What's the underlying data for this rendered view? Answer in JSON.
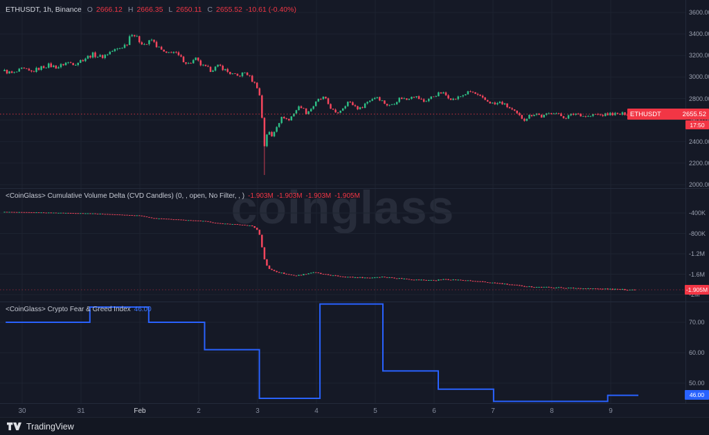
{
  "watermark": "coinglass",
  "colors": {
    "up": "#2ebd85",
    "down": "#f6465d",
    "accent_red": "#f23645",
    "accent_blue": "#2962ff",
    "grid": "#1d2330",
    "axis_text": "#9ba1b0"
  },
  "price_panel": {
    "legend": {
      "title": "ETHUSDT, 1h, Binance",
      "o_label": "O",
      "o": "2666.12",
      "h_label": "H",
      "h": "2666.35",
      "l_label": "L",
      "l": "2650.11",
      "c_label": "C",
      "c": "2655.52",
      "change": "-10.61 (-0.40%)"
    },
    "badge_symbol": "ETHUSDT",
    "badge_price": "2655.52",
    "countdown": "17:50"
  },
  "cvd_panel": {
    "legend_title": "<CoinGlass> Cumulative Volume Delta (CVD Candles) (0, , open, No Filter, , )",
    "values": [
      "-1.903M",
      "-1.903M",
      "-1.903M",
      "-1.905M"
    ],
    "badge": "-1.905M"
  },
  "fg_panel": {
    "legend_title": "<CoinGlass> Crypto Fear & Greed Index",
    "value": "46.00",
    "badge": "46.00"
  },
  "time_axis": {
    "labels": [
      {
        "label": "30",
        "t": 0
      },
      {
        "label": "31",
        "t": 1
      },
      {
        "label": "Feb",
        "t": 2,
        "major": true
      },
      {
        "label": "2",
        "t": 3
      },
      {
        "label": "3",
        "t": 4
      },
      {
        "label": "4",
        "t": 5
      },
      {
        "label": "5",
        "t": 6
      },
      {
        "label": "6",
        "t": 7
      },
      {
        "label": "7",
        "t": 8
      },
      {
        "label": "8",
        "t": 9
      },
      {
        "label": "9",
        "t": 10
      }
    ]
  },
  "footer": {
    "brand": "TradingView"
  },
  "chart_data": [
    {
      "type": "candlestick",
      "title": "ETHUSDT, 1h, Binance",
      "ohlc_last": {
        "open": 2666.12,
        "high": 2666.35,
        "low": 2650.11,
        "close": 2655.52,
        "change": -10.61,
        "change_pct": -0.4
      },
      "current_price": 2655.52,
      "countdown": "17:50",
      "ylim": [
        2000,
        3600
      ],
      "y_ticks": [
        {
          "label": "3600.00",
          "v": 3600
        },
        {
          "label": "3400.00",
          "v": 3400
        },
        {
          "label": "3200.00",
          "v": 3200
        },
        {
          "label": "3000.00",
          "v": 3000
        },
        {
          "label": "2800.00",
          "v": 2800
        },
        {
          "label": "2600.00",
          "v": 2600
        },
        {
          "label": "2400.00",
          "v": 2400
        },
        {
          "label": "2200.00",
          "v": 2200
        },
        {
          "label": "2000.00",
          "v": 2000
        }
      ],
      "crash_wick": {
        "t": 4.1,
        "low": 2090
      },
      "price_keypoints": [
        [
          -0.3,
          3055
        ],
        [
          -0.15,
          3030
        ],
        [
          0.0,
          3075
        ],
        [
          0.15,
          3045
        ],
        [
          0.3,
          3085
        ],
        [
          0.45,
          3110
        ],
        [
          0.6,
          3090
        ],
        [
          0.75,
          3135
        ],
        [
          0.9,
          3125
        ],
        [
          1.05,
          3170
        ],
        [
          1.2,
          3210
        ],
        [
          1.35,
          3185
        ],
        [
          1.5,
          3235
        ],
        [
          1.65,
          3265
        ],
        [
          1.78,
          3310
        ],
        [
          1.85,
          3420
        ],
        [
          1.92,
          3380
        ],
        [
          2.0,
          3330
        ],
        [
          2.1,
          3300
        ],
        [
          2.2,
          3345
        ],
        [
          2.3,
          3280
        ],
        [
          2.45,
          3210
        ],
        [
          2.55,
          3245
        ],
        [
          2.7,
          3175
        ],
        [
          2.82,
          3120
        ],
        [
          2.95,
          3165
        ],
        [
          3.05,
          3105
        ],
        [
          3.2,
          3065
        ],
        [
          3.35,
          3105
        ],
        [
          3.5,
          3045
        ],
        [
          3.65,
          3005
        ],
        [
          3.8,
          3045
        ],
        [
          3.92,
          2960
        ],
        [
          4.02,
          2890
        ],
        [
          4.08,
          2600
        ],
        [
          4.12,
          2340
        ],
        [
          4.17,
          2510
        ],
        [
          4.24,
          2445
        ],
        [
          4.33,
          2555
        ],
        [
          4.43,
          2635
        ],
        [
          4.53,
          2595
        ],
        [
          4.63,
          2680
        ],
        [
          4.73,
          2735
        ],
        [
          4.83,
          2665
        ],
        [
          4.93,
          2720
        ],
        [
          5.03,
          2785
        ],
        [
          5.13,
          2810
        ],
        [
          5.23,
          2725
        ],
        [
          5.33,
          2655
        ],
        [
          5.43,
          2705
        ],
        [
          5.53,
          2770
        ],
        [
          5.63,
          2740
        ],
        [
          5.73,
          2700
        ],
        [
          5.83,
          2755
        ],
        [
          5.93,
          2795
        ],
        [
          6.03,
          2820
        ],
        [
          6.13,
          2770
        ],
        [
          6.23,
          2730
        ],
        [
          6.33,
          2765
        ],
        [
          6.43,
          2810
        ],
        [
          6.53,
          2790
        ],
        [
          6.63,
          2835
        ],
        [
          6.73,
          2805
        ],
        [
          6.83,
          2770
        ],
        [
          6.93,
          2805
        ],
        [
          7.03,
          2835
        ],
        [
          7.13,
          2855
        ],
        [
          7.23,
          2820
        ],
        [
          7.33,
          2790
        ],
        [
          7.43,
          2815
        ],
        [
          7.53,
          2845
        ],
        [
          7.63,
          2865
        ],
        [
          7.73,
          2830
        ],
        [
          7.83,
          2795
        ],
        [
          7.93,
          2770
        ],
        [
          8.03,
          2745
        ],
        [
          8.13,
          2765
        ],
        [
          8.23,
          2730
        ],
        [
          8.33,
          2690
        ],
        [
          8.43,
          2645
        ],
        [
          8.53,
          2605
        ],
        [
          8.63,
          2645
        ],
        [
          8.73,
          2665
        ],
        [
          8.83,
          2630
        ],
        [
          8.93,
          2655
        ],
        [
          9.03,
          2675
        ],
        [
          9.13,
          2645
        ],
        [
          9.23,
          2622
        ],
        [
          9.33,
          2650
        ],
        [
          9.43,
          2663
        ],
        [
          9.53,
          2640
        ],
        [
          9.63,
          2632
        ],
        [
          9.73,
          2655
        ],
        [
          9.83,
          2645
        ],
        [
          9.93,
          2652
        ],
        [
          10.03,
          2660
        ],
        [
          10.13,
          2650
        ],
        [
          10.25,
          2662
        ],
        [
          10.42,
          2655.52
        ]
      ]
    },
    {
      "type": "candlestick",
      "title": "Cumulative Volume Delta (CVD Candles)",
      "last_value_label": "-1.905M",
      "last_value_millions": -1.905,
      "y_ticks": [
        {
          "label": "-400K",
          "v": -0.4
        },
        {
          "label": "-800K",
          "v": -0.8
        },
        {
          "label": "-1.2M",
          "v": -1.2
        },
        {
          "label": "-1.6M",
          "v": -1.6
        },
        {
          "label": "-2M",
          "v": -2.0
        }
      ],
      "cvd_keypoints_millions": [
        [
          -0.3,
          -0.38
        ],
        [
          0.3,
          -0.39
        ],
        [
          0.8,
          -0.4
        ],
        [
          1.2,
          -0.41
        ],
        [
          1.6,
          -0.43
        ],
        [
          2.0,
          -0.45
        ],
        [
          2.2,
          -0.5
        ],
        [
          2.5,
          -0.52
        ],
        [
          2.8,
          -0.54
        ],
        [
          3.1,
          -0.56
        ],
        [
          3.3,
          -0.6
        ],
        [
          3.6,
          -0.62
        ],
        [
          3.9,
          -0.65
        ],
        [
          4.02,
          -0.75
        ],
        [
          4.08,
          -1.1
        ],
        [
          4.13,
          -1.38
        ],
        [
          4.2,
          -1.5
        ],
        [
          4.35,
          -1.56
        ],
        [
          4.5,
          -1.6
        ],
        [
          4.65,
          -1.63
        ],
        [
          4.8,
          -1.6
        ],
        [
          4.95,
          -1.56
        ],
        [
          5.1,
          -1.6
        ],
        [
          5.3,
          -1.63
        ],
        [
          5.6,
          -1.66
        ],
        [
          5.9,
          -1.67
        ],
        [
          6.1,
          -1.65
        ],
        [
          6.4,
          -1.68
        ],
        [
          6.7,
          -1.71
        ],
        [
          7.0,
          -1.72
        ],
        [
          7.2,
          -1.7
        ],
        [
          7.5,
          -1.72
        ],
        [
          7.8,
          -1.75
        ],
        [
          8.1,
          -1.78
        ],
        [
          8.4,
          -1.82
        ],
        [
          8.7,
          -1.85
        ],
        [
          9.0,
          -1.86
        ],
        [
          9.3,
          -1.87
        ],
        [
          9.6,
          -1.88
        ],
        [
          9.9,
          -1.89
        ],
        [
          10.2,
          -1.9
        ],
        [
          10.42,
          -1.905
        ]
      ]
    },
    {
      "type": "step-line",
      "title": "Crypto Fear & Greed Index",
      "last_value": 46.0,
      "y_ticks": [
        {
          "label": "70.00",
          "v": 70
        },
        {
          "label": "60.00",
          "v": 60
        },
        {
          "label": "50.00",
          "v": 50
        }
      ],
      "steps": [
        [
          -0.28,
          70
        ],
        [
          1.15,
          75
        ],
        [
          2.15,
          70
        ],
        [
          3.1,
          61
        ],
        [
          4.03,
          45
        ],
        [
          5.06,
          76
        ],
        [
          6.13,
          54
        ],
        [
          7.07,
          48
        ],
        [
          8.01,
          44
        ],
        [
          9.95,
          46
        ],
        [
          10.47,
          46
        ]
      ]
    }
  ]
}
